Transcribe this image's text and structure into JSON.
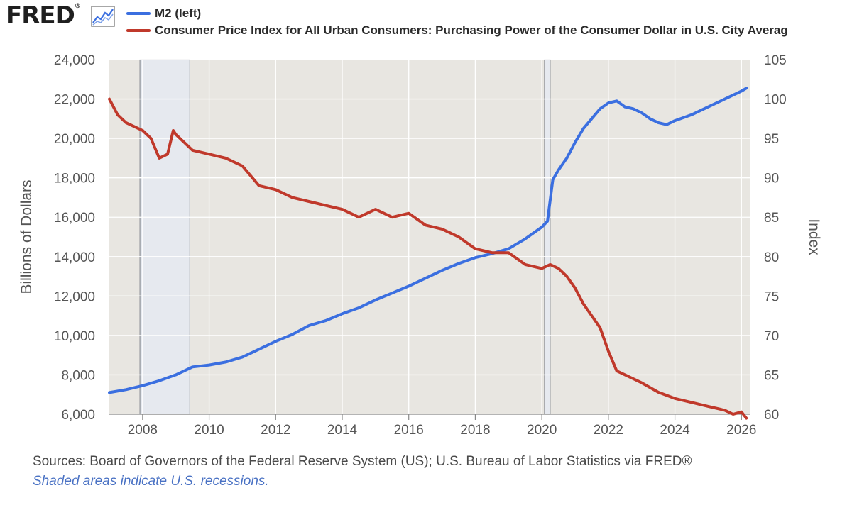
{
  "brand": {
    "name": "FRED",
    "registered": "®",
    "icon": "graph-line-icon"
  },
  "legend": [
    {
      "name": "M2 (left)",
      "color": "#3b6fe0"
    },
    {
      "name": "Consumer Price Index for All Urban Consumers: Purchasing Power of the Consumer Dollar in U.S. City Averag",
      "color": "#c0392b"
    }
  ],
  "footer": {
    "sources": "Sources: Board of Governors of the Federal Reserve System (US); U.S. Bureau of Labor Statistics via FRED®",
    "note": "Shaded areas indicate U.S. recessions."
  },
  "chart_data": {
    "type": "line",
    "ylabel_left": "Billions of Dollars",
    "ylabel_right": "Index",
    "xlim": [
      2007.0,
      2026.25
    ],
    "ylim_left": [
      6000,
      24000
    ],
    "ylim_right": [
      60,
      105
    ],
    "x_ticks": [
      "2008",
      "2010",
      "2012",
      "2014",
      "2016",
      "2018",
      "2020",
      "2022",
      "2024",
      "2026"
    ],
    "y_ticks_left": [
      "6,000",
      "8,000",
      "10,000",
      "12,000",
      "14,000",
      "16,000",
      "18,000",
      "20,000",
      "22,000",
      "24,000"
    ],
    "y_ticks_right": [
      "60",
      "65",
      "70",
      "75",
      "80",
      "85",
      "90",
      "95",
      "100",
      "105"
    ],
    "grid": true,
    "recessions": [
      [
        2007.92,
        2009.42
      ],
      [
        2020.08,
        2020.25
      ]
    ],
    "series": [
      {
        "name": "M2 (left)",
        "axis": "left",
        "color": "#3b6fe0",
        "x": [
          2007.0,
          2007.5,
          2008.0,
          2008.5,
          2009.0,
          2009.5,
          2010.0,
          2010.5,
          2011.0,
          2011.5,
          2012.0,
          2012.5,
          2013.0,
          2013.5,
          2014.0,
          2014.5,
          2015.0,
          2015.5,
          2016.0,
          2016.5,
          2017.0,
          2017.5,
          2018.0,
          2018.5,
          2019.0,
          2019.5,
          2020.0,
          2020.17,
          2020.33,
          2020.5,
          2020.75,
          2021.0,
          2021.25,
          2021.5,
          2021.75,
          2022.0,
          2022.25,
          2022.5,
          2022.75,
          2023.0,
          2023.25,
          2023.5,
          2023.75,
          2024.0,
          2024.5,
          2025.0,
          2025.5,
          2026.0,
          2026.15
        ],
        "y": [
          7100,
          7250,
          7450,
          7700,
          8000,
          8400,
          8500,
          8650,
          8900,
          9300,
          9700,
          10050,
          10500,
          10750,
          11100,
          11400,
          11800,
          12150,
          12500,
          12900,
          13300,
          13650,
          13950,
          14150,
          14400,
          14900,
          15500,
          15800,
          17900,
          18400,
          19000,
          19800,
          20500,
          21000,
          21500,
          21800,
          21900,
          21600,
          21500,
          21300,
          21000,
          20800,
          20700,
          20900,
          21200,
          21600,
          22000,
          22400,
          22550
        ]
      },
      {
        "name": "Consumer Price Index for All Urban Consumers: Purchasing Power of the Consumer Dollar in U.S. City Averag",
        "axis": "right",
        "color": "#c0392b",
        "x": [
          2007.0,
          2007.25,
          2007.5,
          2007.75,
          2008.0,
          2008.25,
          2008.5,
          2008.75,
          2008.92,
          2009.0,
          2009.25,
          2009.5,
          2010.0,
          2010.5,
          2011.0,
          2011.5,
          2012.0,
          2012.5,
          2013.0,
          2013.5,
          2014.0,
          2014.5,
          2015.0,
          2015.5,
          2016.0,
          2016.5,
          2017.0,
          2017.5,
          2018.0,
          2018.5,
          2019.0,
          2019.5,
          2020.0,
          2020.25,
          2020.5,
          2020.75,
          2021.0,
          2021.25,
          2021.5,
          2021.75,
          2022.0,
          2022.25,
          2022.5,
          2022.75,
          2023.0,
          2023.5,
          2024.0,
          2024.5,
          2025.0,
          2025.5,
          2025.75,
          2026.0,
          2026.15
        ],
        "y": [
          100,
          98,
          97,
          96.5,
          96,
          95,
          92.5,
          93,
          96,
          95.5,
          94.5,
          93.5,
          93,
          92.5,
          91.5,
          89,
          88.5,
          87.5,
          87,
          86.5,
          86,
          85,
          86,
          85,
          85.5,
          84,
          83.5,
          82.5,
          81,
          80.5,
          80.5,
          79,
          78.5,
          79,
          78.5,
          77.5,
          76,
          74,
          72.5,
          71,
          68,
          65.5,
          65,
          64.5,
          64,
          62.8,
          62,
          61.5,
          61,
          60.5,
          60,
          60.3,
          59.5
        ]
      }
    ]
  }
}
